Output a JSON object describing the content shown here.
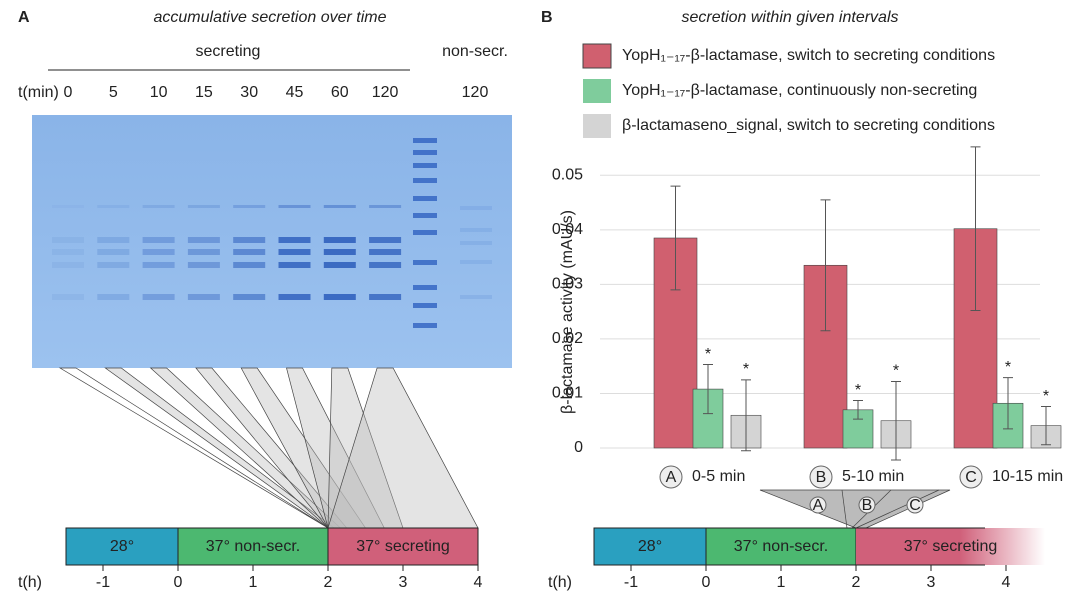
{
  "panel_a": {
    "letter": "A",
    "title": "accumulative secretion over time",
    "group_label": "secreting",
    "control_label": "non-secr.",
    "time_label": "t(min)",
    "lanes": [
      0,
      5,
      10,
      15,
      30,
      45,
      60,
      120
    ],
    "control_lane": 120
  },
  "timeline": {
    "segments": [
      "28°",
      "37° non-secr.",
      "37° secreting"
    ],
    "label": "t(h)",
    "ticks": [
      -1,
      0,
      1,
      2,
      3,
      4
    ]
  },
  "chart_data": {
    "type": "bar",
    "letter": "B",
    "title": "secretion within given intervals",
    "ylabel": "β-lactamase activity (mAU/s)",
    "categories": [
      "0-5 min",
      "5-10 min",
      "10-15 min"
    ],
    "category_markers": [
      "A",
      "B",
      "C"
    ],
    "series": [
      {
        "name": "YopH₁₋₁₇-β-lactamase, switch to secreting conditions",
        "color": "#d0606f",
        "values": [
          0.0385,
          0.0335,
          0.0402
        ],
        "errors": [
          0.0095,
          0.012,
          0.015
        ]
      },
      {
        "name": "YopH₁₋₁₇-β-lactamase, continuously non-secreting",
        "color": "#7fcc9c",
        "values": [
          0.0108,
          0.007,
          0.0082
        ],
        "errors": [
          0.0045,
          0.0017,
          0.0047
        ],
        "annotations": [
          "*",
          "*",
          "*"
        ]
      },
      {
        "name": "β-lactamaseno_signal, switch to secreting conditions",
        "color": "#d4d4d4",
        "values": [
          0.006,
          0.005,
          0.0041
        ],
        "errors": [
          0.0065,
          0.0072,
          0.0035
        ],
        "annotations": [
          "*",
          "*",
          "*"
        ]
      }
    ],
    "ylim": [
      0,
      0.055
    ],
    "yticks": [
      0,
      0.01,
      0.02,
      0.03,
      0.04,
      0.05
    ],
    "grid": true
  }
}
